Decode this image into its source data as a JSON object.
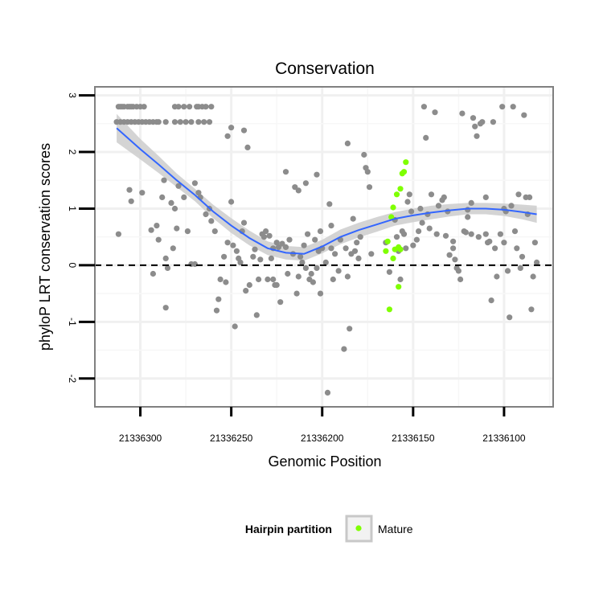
{
  "chart_data": {
    "type": "scatter",
    "title": "Conservation",
    "xlabel": "Genomic Position",
    "ylabel": "phyloP LRT conservation scores",
    "x_reversed": true,
    "xlim": [
      21336325,
      21336073
    ],
    "ylim": [
      -2.5,
      3.15
    ],
    "x_ticks": [
      21336300,
      21336250,
      21336200,
      21336150,
      21336100
    ],
    "x_tick_labels": [
      "21336300",
      "21336250",
      "21336200",
      "21336150",
      "21336100"
    ],
    "y_ticks": [
      -2,
      -1,
      0,
      1,
      2,
      3
    ],
    "y_tick_labels": [
      "-2",
      "-1",
      "0",
      "1",
      "2",
      "3"
    ],
    "reference_line": {
      "y": 0,
      "style": "dashed"
    },
    "grid": true,
    "legend": {
      "title": "Hairpin partition",
      "position": "bottom",
      "entries": [
        {
          "label": "Mature",
          "color": "#7fff00"
        }
      ]
    },
    "series": [
      {
        "color": "#8c8c8c",
        "points": [
          [
            21336312,
            2.8
          ],
          [
            21336311,
            2.8
          ],
          [
            21336310,
            2.8
          ],
          [
            21336309,
            2.8
          ],
          [
            21336307,
            2.8
          ],
          [
            21336306,
            2.8
          ],
          [
            21336305,
            2.8
          ],
          [
            21336304,
            2.8
          ],
          [
            21336302,
            2.8
          ],
          [
            21336300,
            2.8
          ],
          [
            21336298,
            2.8
          ],
          [
            21336313,
            2.53
          ],
          [
            21336311,
            2.53
          ],
          [
            21336309,
            2.53
          ],
          [
            21336307,
            2.53
          ],
          [
            21336305,
            2.53
          ],
          [
            21336303,
            2.53
          ],
          [
            21336301,
            2.53
          ],
          [
            21336299,
            2.53
          ],
          [
            21336297,
            2.53
          ],
          [
            21336295,
            2.53
          ],
          [
            21336293,
            2.53
          ],
          [
            21336291,
            2.53
          ],
          [
            21336290,
            2.53
          ],
          [
            21336286,
            2.53
          ],
          [
            21336281,
            2.53
          ],
          [
            21336278,
            2.53
          ],
          [
            21336275,
            2.53
          ],
          [
            21336272,
            2.53
          ],
          [
            21336268,
            2.53
          ],
          [
            21336265,
            2.53
          ],
          [
            21336262,
            2.53
          ],
          [
            21336281,
            2.8
          ],
          [
            21336279,
            2.8
          ],
          [
            21336276,
            2.8
          ],
          [
            21336273,
            2.8
          ],
          [
            21336269,
            2.8
          ],
          [
            21336268,
            2.8
          ],
          [
            21336266,
            2.8
          ],
          [
            21336264,
            2.8
          ],
          [
            21336261,
            2.8
          ],
          [
            21336312,
            0.55
          ],
          [
            21336306,
            1.33
          ],
          [
            21336305,
            1.13
          ],
          [
            21336299,
            1.28
          ],
          [
            21336294,
            0.62
          ],
          [
            21336291,
            0.7
          ],
          [
            21336290,
            0.45
          ],
          [
            21336288,
            1.2
          ],
          [
            21336287,
            1.5
          ],
          [
            21336286,
            0.12
          ],
          [
            21336285,
            -0.05
          ],
          [
            21336283,
            1.1
          ],
          [
            21336282,
            0.3
          ],
          [
            21336281,
            1.0
          ],
          [
            21336279,
            1.4
          ],
          [
            21336276,
            1.2
          ],
          [
            21336274,
            0.6
          ],
          [
            21336272,
            0.02
          ],
          [
            21336270,
            1.45
          ],
          [
            21336267,
            1.2
          ],
          [
            21336264,
            0.9
          ],
          [
            21336261,
            0.78
          ],
          [
            21336293,
            -0.15
          ],
          [
            21336286,
            -0.75
          ],
          [
            21336280,
            0.65
          ],
          [
            21336270,
            0.02
          ],
          [
            21336268,
            1.28
          ],
          [
            21336262,
            1.0
          ],
          [
            21336259,
            0.6
          ],
          [
            21336258,
            -0.8
          ],
          [
            21336257,
            -0.6
          ],
          [
            21336256,
            -0.25
          ],
          [
            21336254,
            0.15
          ],
          [
            21336253,
            -0.3
          ],
          [
            21336252,
            0.4
          ],
          [
            21336250,
            1.12
          ],
          [
            21336249,
            0.35
          ],
          [
            21336248,
            -1.08
          ],
          [
            21336247,
            0.25
          ],
          [
            21336246,
            0.12
          ],
          [
            21336245,
            0.05
          ],
          [
            21336244,
            0.6
          ],
          [
            21336243,
            0.75
          ],
          [
            21336242,
            -0.45
          ],
          [
            21336240,
            -0.35
          ],
          [
            21336238,
            0.15
          ],
          [
            21336236,
            -0.88
          ],
          [
            21336235,
            -0.25
          ],
          [
            21336234,
            0.1
          ],
          [
            21336233,
            0.55
          ],
          [
            21336232,
            0.5
          ],
          [
            21336230,
            -0.25
          ],
          [
            21336228,
            0.12
          ],
          [
            21336227,
            0.3
          ],
          [
            21336226,
            -0.35
          ],
          [
            21336225,
            0.4
          ],
          [
            21336224,
            0.32
          ],
          [
            21336223,
            -0.65
          ],
          [
            21336222,
            0.38
          ],
          [
            21336220,
            0.32
          ],
          [
            21336218,
            0.45
          ],
          [
            21336216,
            0.2
          ],
          [
            21336214,
            -0.5
          ],
          [
            21336213,
            -0.2
          ],
          [
            21336212,
            0.15
          ],
          [
            21336211,
            0.05
          ],
          [
            21336210,
            0.35
          ],
          [
            21336208,
            0.55
          ],
          [
            21336207,
            -0.25
          ],
          [
            21336206,
            -0.15
          ],
          [
            21336205,
            -0.3
          ],
          [
            21336204,
            0.45
          ],
          [
            21336203,
            -0.05
          ],
          [
            21336202,
            0.25
          ],
          [
            21336201,
            0.6
          ],
          [
            21336200,
            0.3
          ],
          [
            21336198,
            0.05
          ],
          [
            21336197,
            -2.25
          ],
          [
            21336195,
            0.3
          ],
          [
            21336194,
            -0.25
          ],
          [
            21336193,
            0.2
          ],
          [
            21336191,
            -0.1
          ],
          [
            21336190,
            0.45
          ],
          [
            21336188,
            -1.48
          ],
          [
            21336187,
            0.3
          ],
          [
            21336186,
            -0.2
          ],
          [
            21336185,
            -1.12
          ],
          [
            21336184,
            0.2
          ],
          [
            21336183,
            0.82
          ],
          [
            21336182,
            0.25
          ],
          [
            21336181,
            0.4
          ],
          [
            21336180,
            0.12
          ],
          [
            21336179,
            0.5
          ],
          [
            21336177,
            1.95
          ],
          [
            21336176,
            1.72
          ],
          [
            21336175,
            1.65
          ],
          [
            21336174,
            1.38
          ],
          [
            21336173,
            0.2
          ],
          [
            21336195,
            0.7
          ],
          [
            21336201,
            -0.5
          ],
          [
            21336209,
            -0.05
          ],
          [
            21336219,
            -0.15
          ],
          [
            21336225,
            -0.35
          ],
          [
            21336227,
            -0.25
          ],
          [
            21336229,
            0.52
          ],
          [
            21336231,
            0.6
          ],
          [
            21336237,
            0.28
          ],
          [
            21336241,
            2.08
          ],
          [
            21336243,
            2.38
          ],
          [
            21336250,
            2.43
          ],
          [
            21336252,
            2.28
          ],
          [
            21336220,
            1.65
          ],
          [
            21336215,
            1.38
          ],
          [
            21336213,
            1.32
          ],
          [
            21336209,
            1.45
          ],
          [
            21336203,
            1.6
          ],
          [
            21336196,
            1.08
          ],
          [
            21336186,
            2.15
          ],
          [
            21336160,
            0.8
          ],
          [
            21336159,
            0.5
          ],
          [
            21336157,
            -0.25
          ],
          [
            21336156,
            0.6
          ],
          [
            21336155,
            0.55
          ],
          [
            21336154,
            0.3
          ],
          [
            21336153,
            1.12
          ],
          [
            21336152,
            1.25
          ],
          [
            21336151,
            0.95
          ],
          [
            21336150,
            0.35
          ],
          [
            21336148,
            0.45
          ],
          [
            21336147,
            0.6
          ],
          [
            21336146,
            1.0
          ],
          [
            21336145,
            0.75
          ],
          [
            21336144,
            2.8
          ],
          [
            21336143,
            2.25
          ],
          [
            21336142,
            0.9
          ],
          [
            21336141,
            0.65
          ],
          [
            21336140,
            1.25
          ],
          [
            21336138,
            2.7
          ],
          [
            21336137,
            0.55
          ],
          [
            21336136,
            1.05
          ],
          [
            21336134,
            1.15
          ],
          [
            21336133,
            1.2
          ],
          [
            21336132,
            0.52
          ],
          [
            21336131,
            0.95
          ],
          [
            21336130,
            0.18
          ],
          [
            21336128,
            0.42
          ],
          [
            21336127,
            0.1
          ],
          [
            21336126,
            -0.05
          ],
          [
            21336125,
            -0.1
          ],
          [
            21336124,
            -0.25
          ],
          [
            21336123,
            2.68
          ],
          [
            21336122,
            0.6
          ],
          [
            21336121,
            0.58
          ],
          [
            21336120,
            0.85
          ],
          [
            21336118,
            1.1
          ],
          [
            21336117,
            2.6
          ],
          [
            21336116,
            2.45
          ],
          [
            21336115,
            2.28
          ],
          [
            21336114,
            0.5
          ],
          [
            21336113,
            2.5
          ],
          [
            21336112,
            2.53
          ],
          [
            21336110,
            1.2
          ],
          [
            21336109,
            0.4
          ],
          [
            21336108,
            0.42
          ],
          [
            21336107,
            -0.62
          ],
          [
            21336106,
            2.53
          ],
          [
            21336105,
            0.3
          ],
          [
            21336104,
            -0.2
          ],
          [
            21336102,
            0.55
          ],
          [
            21336101,
            2.8
          ],
          [
            21336100,
            0.4
          ],
          [
            21336099,
            0.95
          ],
          [
            21336098,
            -0.1
          ],
          [
            21336097,
            -0.92
          ],
          [
            21336096,
            1.05
          ],
          [
            21336095,
            2.8
          ],
          [
            21336094,
            0.6
          ],
          [
            21336093,
            0.3
          ],
          [
            21336092,
            1.25
          ],
          [
            21336091,
            -0.05
          ],
          [
            21336090,
            0.15
          ],
          [
            21336089,
            2.65
          ],
          [
            21336088,
            1.2
          ],
          [
            21336087,
            0.9
          ],
          [
            21336086,
            1.2
          ],
          [
            21336085,
            -0.78
          ],
          [
            21336084,
            -0.2
          ],
          [
            21336083,
            0.4
          ],
          [
            21336082,
            0.05
          ],
          [
            21336100,
            1.0
          ],
          [
            21336120,
            0.98
          ],
          [
            21336118,
            0.55
          ],
          [
            21336110,
            0.55
          ],
          [
            21336128,
            0.3
          ],
          [
            21336165,
            0.4
          ],
          [
            21336163,
            -0.12
          ],
          [
            21336158,
            0.25
          ]
        ]
      },
      {
        "name": "Mature",
        "color": "#7fff00",
        "points": [
          [
            21336154,
            1.82
          ],
          [
            21336155,
            1.65
          ],
          [
            21336156,
            1.62
          ],
          [
            21336157,
            1.35
          ],
          [
            21336159,
            1.25
          ],
          [
            21336161,
            1.02
          ],
          [
            21336162,
            0.85
          ],
          [
            21336164,
            0.42
          ],
          [
            21336165,
            0.25
          ],
          [
            21336160,
            0.28
          ],
          [
            21336157,
            0.28
          ],
          [
            21336161,
            0.12
          ],
          [
            21336158,
            0.32
          ],
          [
            21336163,
            -0.78
          ],
          [
            21336158,
            -0.38
          ]
        ]
      }
    ],
    "smooth": {
      "color": "#3366ff",
      "band_color": "#cccccc",
      "points": [
        [
          21336313,
          2.42,
          0.25
        ],
        [
          21336300,
          2.05,
          0.18
        ],
        [
          21336290,
          1.78,
          0.15
        ],
        [
          21336280,
          1.5,
          0.12
        ],
        [
          21336270,
          1.24,
          0.11
        ],
        [
          21336260,
          0.95,
          0.12
        ],
        [
          21336250,
          0.7,
          0.13
        ],
        [
          21336240,
          0.48,
          0.13
        ],
        [
          21336230,
          0.3,
          0.12
        ],
        [
          21336220,
          0.22,
          0.12
        ],
        [
          21336210,
          0.2,
          0.12
        ],
        [
          21336200,
          0.33,
          0.12
        ],
        [
          21336190,
          0.5,
          0.13
        ],
        [
          21336180,
          0.62,
          0.13
        ],
        [
          21336170,
          0.72,
          0.13
        ],
        [
          21336160,
          0.82,
          0.12
        ],
        [
          21336150,
          0.88,
          0.12
        ],
        [
          21336140,
          0.93,
          0.12
        ],
        [
          21336130,
          0.97,
          0.11
        ],
        [
          21336120,
          1.0,
          0.1
        ],
        [
          21336110,
          1.0,
          0.1
        ],
        [
          21336100,
          0.98,
          0.11
        ],
        [
          21336090,
          0.94,
          0.13
        ],
        [
          21336082,
          0.9,
          0.15
        ]
      ]
    }
  }
}
